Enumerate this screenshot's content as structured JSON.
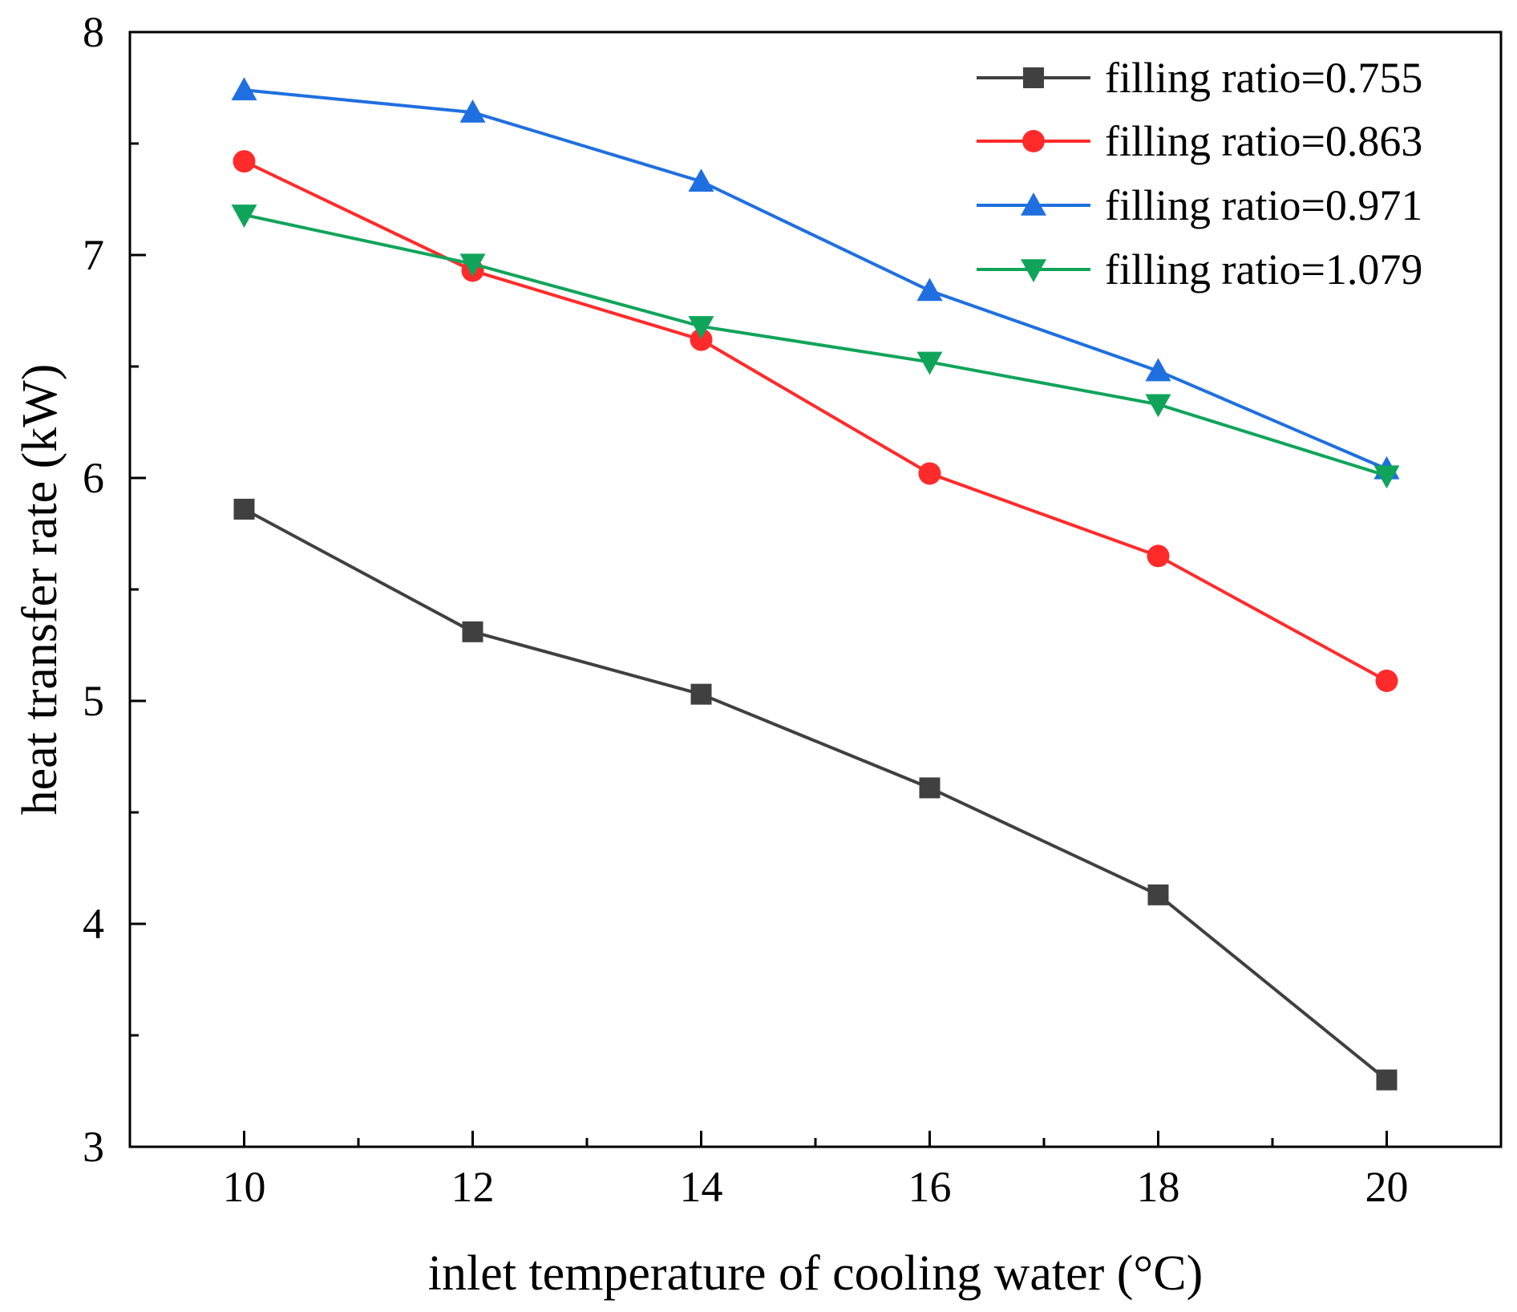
{
  "chart_data": {
    "type": "line",
    "title": "",
    "xlabel": "inlet temperature of cooling water (°C)",
    "ylabel": "heat transfer rate (kW)",
    "x": [
      10,
      12,
      14,
      16,
      18,
      20
    ],
    "xlim": [
      9,
      21
    ],
    "ylim": [
      3,
      8
    ],
    "xticks": [
      10,
      12,
      14,
      16,
      18,
      20
    ],
    "yticks": [
      3,
      4,
      5,
      6,
      7,
      8
    ],
    "xtick_labels": [
      "10",
      "12",
      "14",
      "16",
      "18",
      "20"
    ],
    "ytick_labels": [
      "3",
      "4",
      "5",
      "6",
      "7",
      "8"
    ],
    "grid": false,
    "legend_position": "top-right",
    "series": [
      {
        "name": "filling ratio=0.755",
        "color": "#404040",
        "marker": "square",
        "values": [
          5.86,
          5.31,
          5.03,
          4.61,
          4.13,
          3.3
        ]
      },
      {
        "name": "filling ratio=0.863",
        "color": "#ff2b2b",
        "marker": "circle",
        "values": [
          7.42,
          6.93,
          6.62,
          6.02,
          5.65,
          5.09
        ]
      },
      {
        "name": "filling ratio=0.971",
        "color": "#1f6fe0",
        "marker": "triangle-up",
        "values": [
          7.74,
          7.64,
          7.33,
          6.84,
          6.48,
          6.04
        ]
      },
      {
        "name": "filling ratio=1.079",
        "color": "#10a45a",
        "marker": "triangle-down",
        "values": [
          7.18,
          6.96,
          6.68,
          6.52,
          6.33,
          6.01
        ]
      }
    ]
  }
}
